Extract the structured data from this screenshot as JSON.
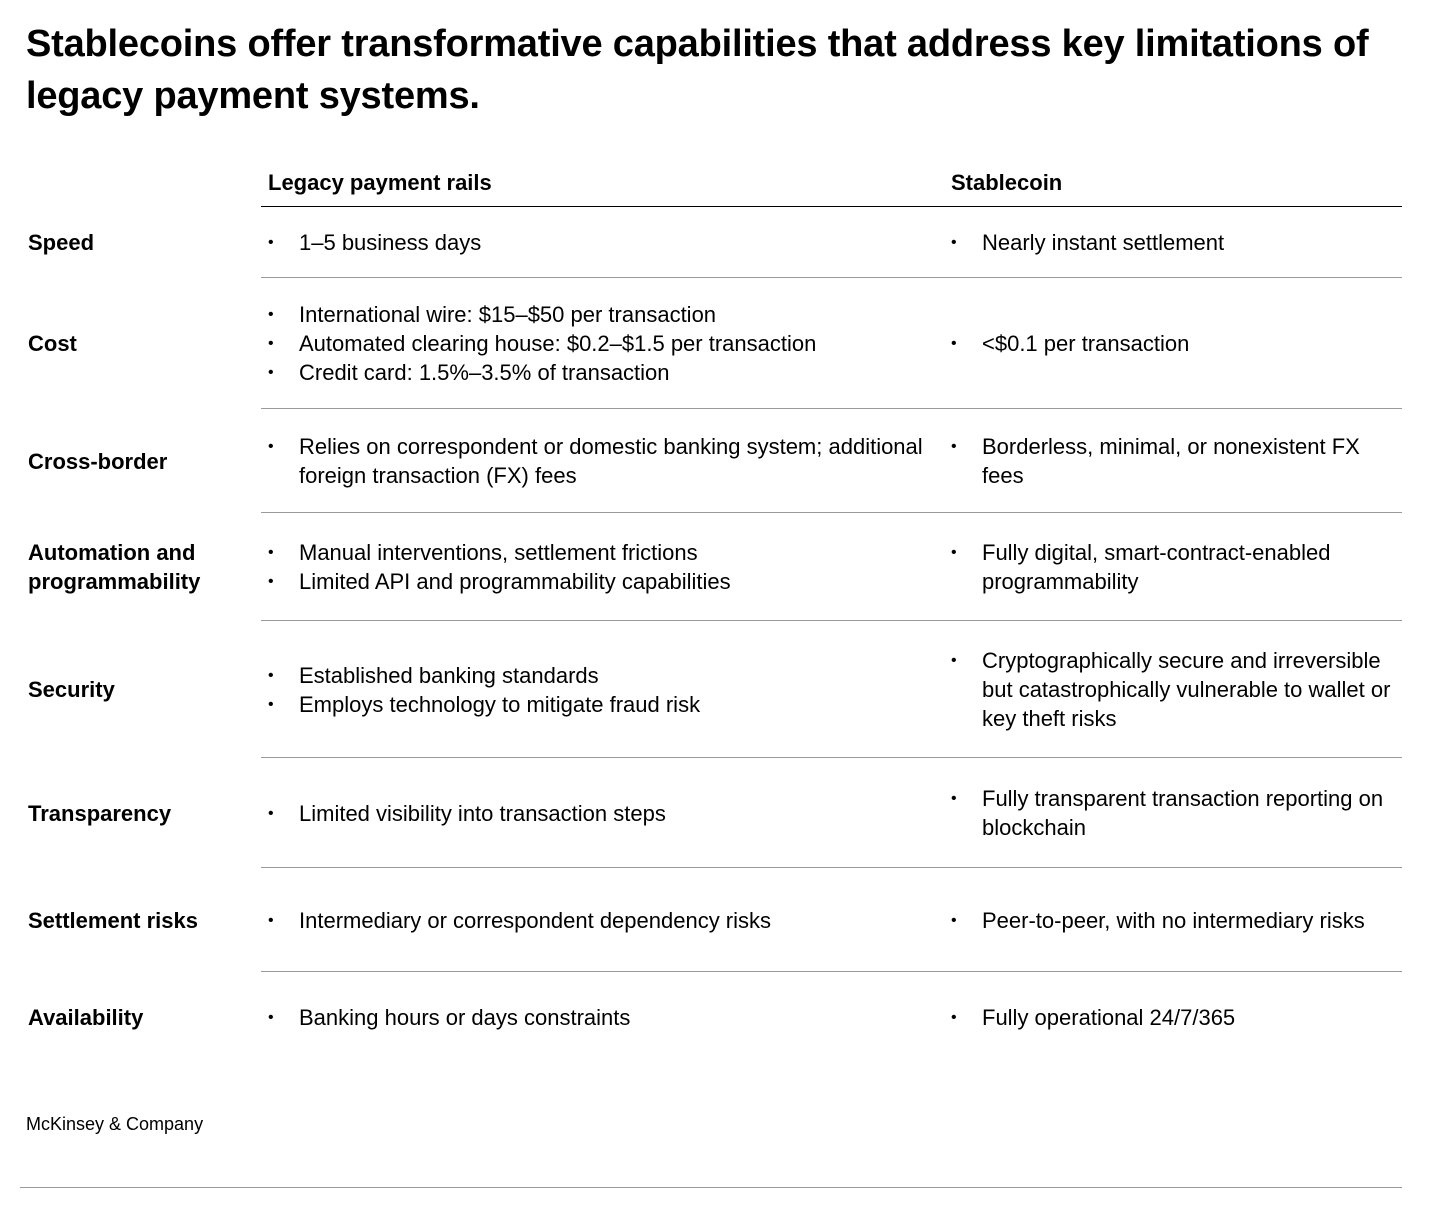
{
  "title": "Stablecoins offer transformative capabilities that address key limitations of legacy payment systems.",
  "columns": {
    "legacy": "Legacy payment rails",
    "stablecoin": "Stablecoin"
  },
  "rows": [
    {
      "label": "Speed",
      "legacy": [
        "1–5 business days"
      ],
      "stablecoin": [
        "Nearly instant settlement"
      ]
    },
    {
      "label": "Cost",
      "legacy": [
        "International wire: $15–$50 per transaction",
        "Automated clearing house: $0.2–$1.5 per transaction",
        "Credit card: 1.5%–3.5% of transaction"
      ],
      "stablecoin": [
        "<$0.1 per transaction"
      ]
    },
    {
      "label": "Cross-border",
      "legacy": [
        "Relies on correspondent or domestic banking system; additional foreign transaction (FX) fees"
      ],
      "stablecoin": [
        "Borderless, minimal, or nonexistent FX fees"
      ]
    },
    {
      "label": "Automation and programmability",
      "legacy": [
        "Manual interventions, settlement frictions",
        "Limited API and programmability capabilities"
      ],
      "stablecoin": [
        "Fully digital, smart-contract-enabled programmability"
      ]
    },
    {
      "label": "Security",
      "legacy": [
        "Established banking standards",
        "Employs technology to mitigate fraud risk"
      ],
      "stablecoin": [
        "Cryptographically secure and irreversible but catastrophically vulnerable to wallet or key theft risks"
      ]
    },
    {
      "label": "Transparency",
      "legacy": [
        "Limited visibility into transaction steps"
      ],
      "stablecoin": [
        "Fully transparent transaction reporting on blockchain"
      ]
    },
    {
      "label": "Settlement risks",
      "legacy": [
        "Intermediary or correspondent dependency risks"
      ],
      "stablecoin": [
        "Peer-to-peer, with no intermediary risks"
      ]
    },
    {
      "label": "Availability",
      "legacy": [
        "Banking hours or days constraints"
      ],
      "stablecoin": [
        "Fully operational 24/7/365"
      ]
    }
  ],
  "source": "McKinsey & Company"
}
